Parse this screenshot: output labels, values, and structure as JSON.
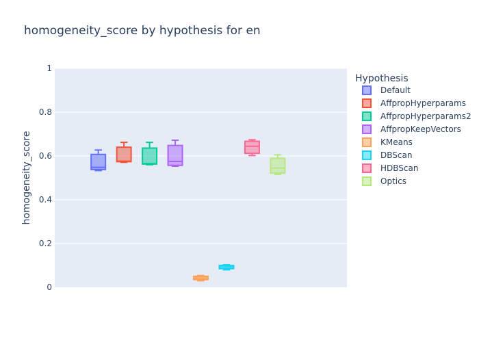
{
  "chart_data": {
    "type": "box",
    "title": "homogeneity_score by hypothesis for en",
    "xlabel": "",
    "ylabel": "homogeneity_score",
    "ylim": [
      0,
      1
    ],
    "yticks": [
      {
        "value": 0,
        "label": "0"
      },
      {
        "value": 0.2,
        "label": "0.2"
      },
      {
        "value": 0.4,
        "label": "0.4"
      },
      {
        "value": 0.6,
        "label": "0.6"
      },
      {
        "value": 0.8,
        "label": "0.8"
      },
      {
        "value": 1,
        "label": "1"
      }
    ],
    "grid": true,
    "legend_title": "Hypothesis",
    "legend_position": "right",
    "series": [
      {
        "name": "Default",
        "color": "#636efa",
        "min": 0.533,
        "q1": 0.538,
        "median": 0.548,
        "q3": 0.607,
        "max": 0.627
      },
      {
        "name": "AffpropHyperparams",
        "color": "#ef553b",
        "min": 0.571,
        "q1": 0.574,
        "median": 0.576,
        "q3": 0.64,
        "max": 0.662
      },
      {
        "name": "AffpropHyperparams2",
        "color": "#00cc96",
        "min": 0.56,
        "q1": 0.563,
        "median": 0.565,
        "q3": 0.636,
        "max": 0.662
      },
      {
        "name": "AffpropKeepVectors",
        "color": "#ab63fa",
        "min": 0.553,
        "q1": 0.557,
        "median": 0.575,
        "q3": 0.648,
        "max": 0.672
      },
      {
        "name": "KMeans",
        "color": "#ffa15a",
        "min": 0.03,
        "q1": 0.035,
        "median": 0.042,
        "q3": 0.05,
        "max": 0.054
      },
      {
        "name": "DBScan",
        "color": "#19d3f3",
        "min": 0.08,
        "q1": 0.085,
        "median": 0.093,
        "q3": 0.1,
        "max": 0.103
      },
      {
        "name": "HDBScan",
        "color": "#ff6692",
        "min": 0.602,
        "q1": 0.612,
        "median": 0.644,
        "q3": 0.667,
        "max": 0.674
      },
      {
        "name": "Optics",
        "color": "#b6e880",
        "min": 0.516,
        "q1": 0.522,
        "median": 0.545,
        "q3": 0.589,
        "max": 0.605
      }
    ]
  }
}
